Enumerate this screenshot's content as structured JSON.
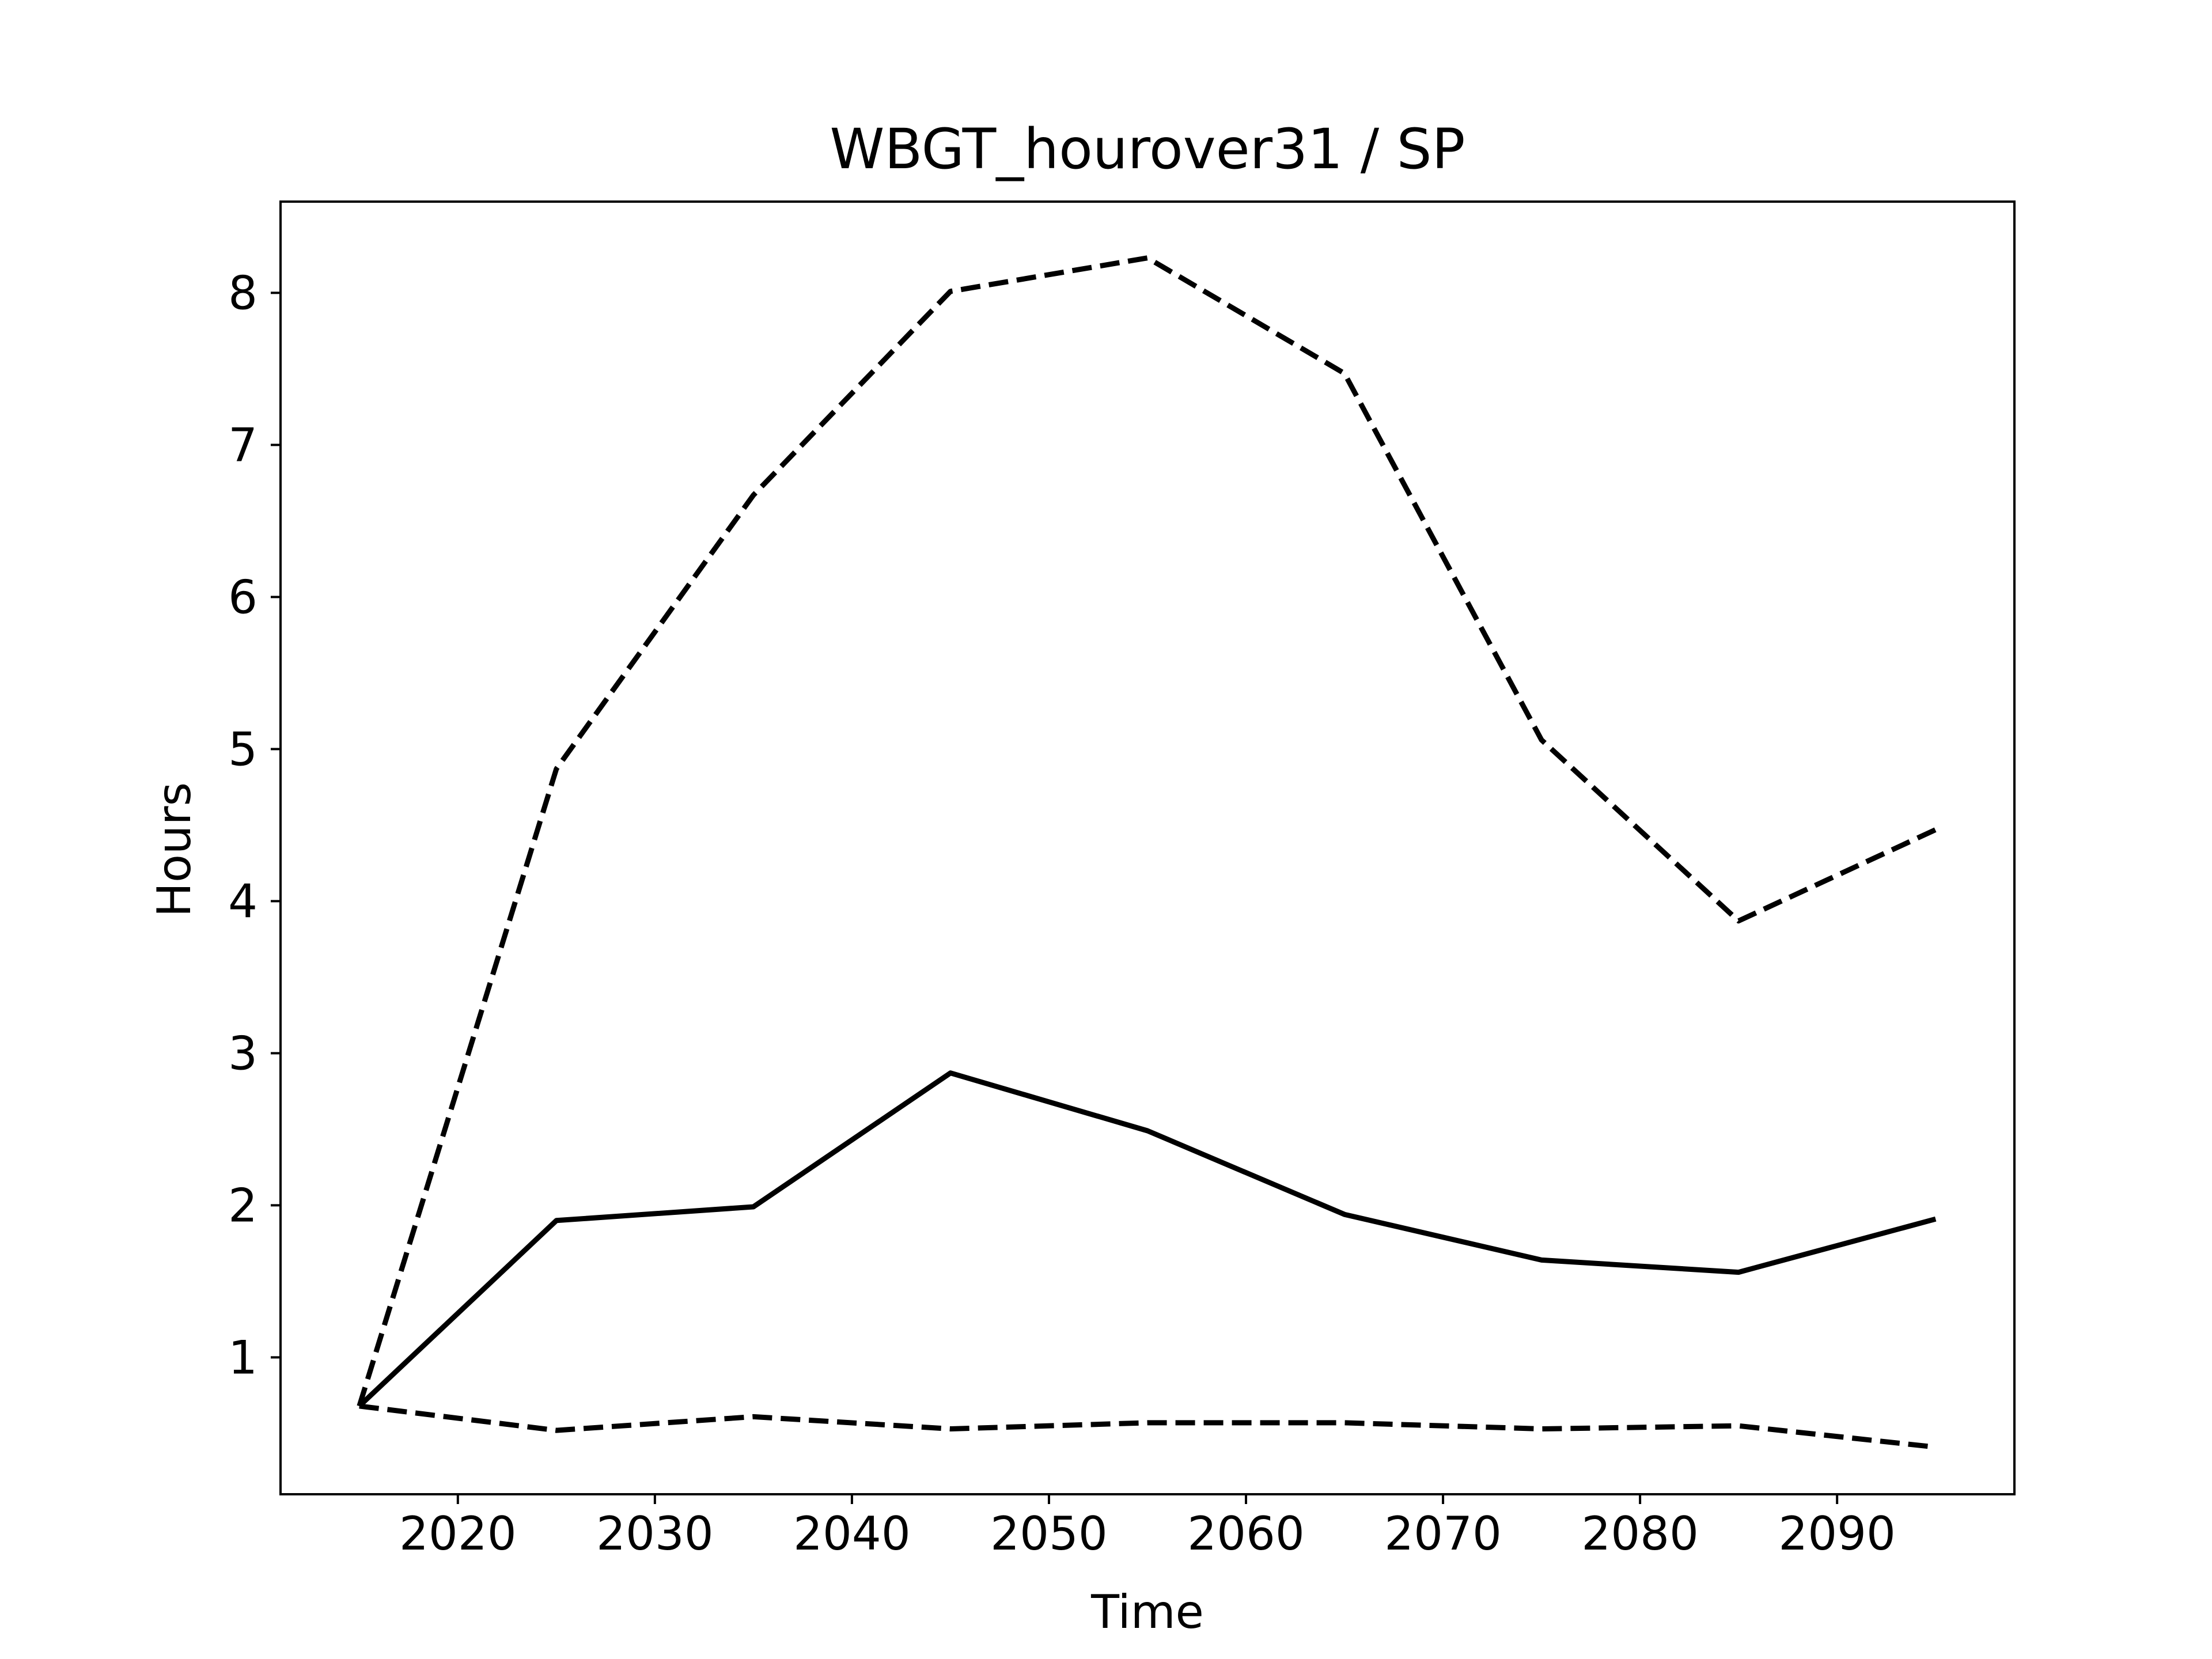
{
  "chart_data": {
    "type": "line",
    "title": "WBGT_hourover31 / SP",
    "xlabel": "Time",
    "ylabel": "Hours",
    "xlim": [
      2011,
      2099
    ],
    "ylim": [
      0.1,
      8.6
    ],
    "xticks": [
      2020,
      2030,
      2040,
      2050,
      2060,
      2070,
      2080,
      2090
    ],
    "yticks": [
      1,
      2,
      3,
      4,
      5,
      6,
      7,
      8
    ],
    "grid": false,
    "legend": null,
    "x": [
      2015,
      2025,
      2035,
      2045,
      2055,
      2065,
      2075,
      2085,
      2095
    ],
    "series": [
      {
        "style": "solid",
        "color": "#000000",
        "values": [
          0.68,
          1.9,
          1.99,
          2.87,
          2.49,
          1.94,
          1.64,
          1.56,
          1.91
        ]
      },
      {
        "style": "dashed",
        "color": "#000000",
        "values": [
          0.68,
          4.87,
          6.67,
          8.01,
          8.23,
          7.47,
          5.06,
          3.87,
          4.47
        ]
      },
      {
        "style": "dashed",
        "color": "#000000",
        "values": [
          0.68,
          0.52,
          0.61,
          0.53,
          0.57,
          0.57,
          0.53,
          0.55,
          0.41
        ]
      }
    ]
  }
}
